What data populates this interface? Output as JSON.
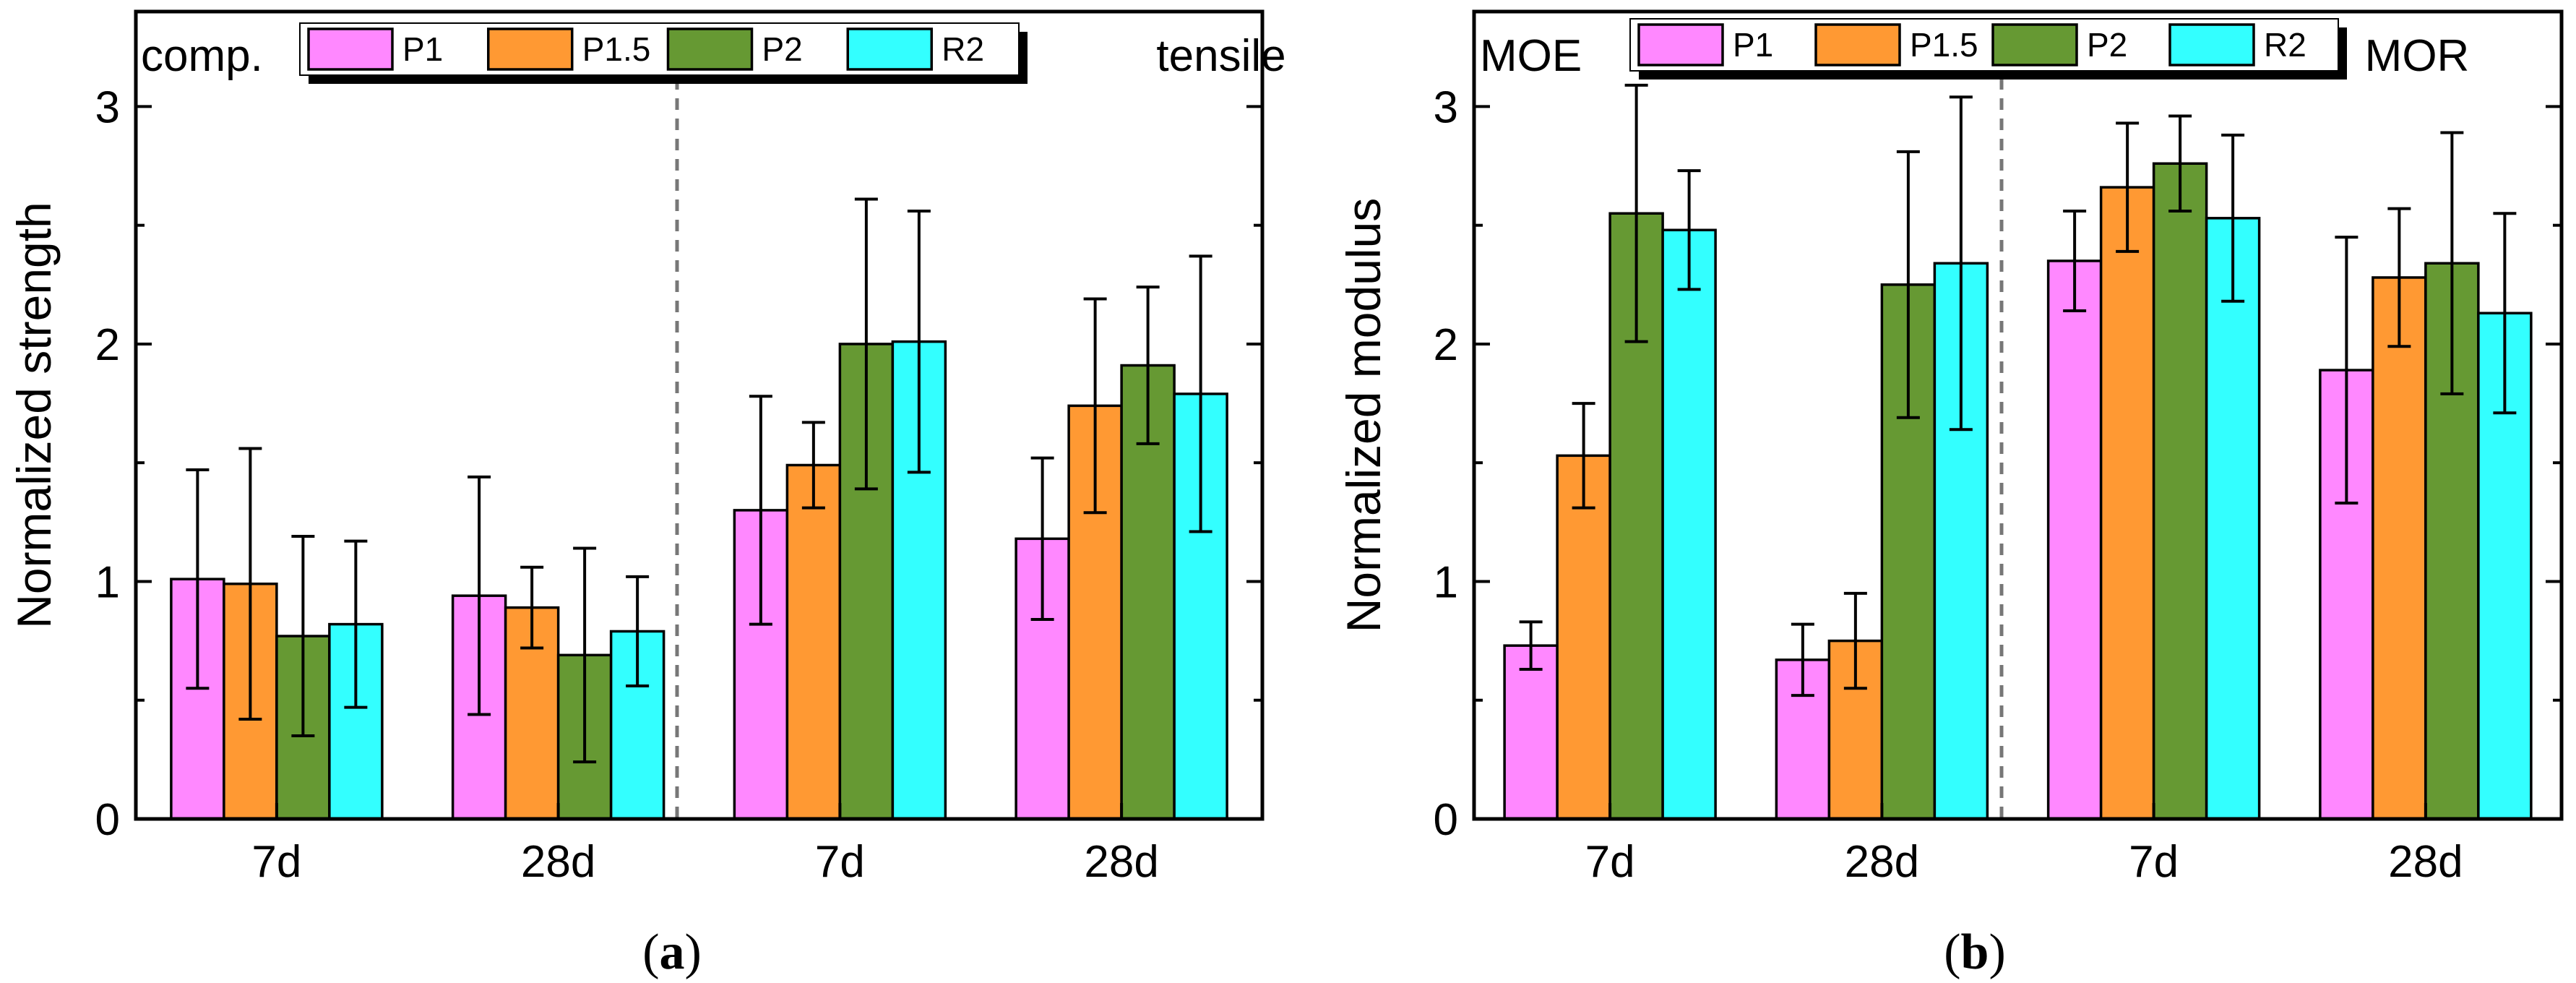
{
  "chart_data": [
    {
      "type": "bar",
      "panel": "(a)",
      "panel_letter": "a",
      "ylabel": "Normalized strength",
      "ylim": [
        0,
        3.4
      ],
      "yticks": [
        0,
        1,
        2,
        3
      ],
      "regions": [
        "comp.",
        "tensile"
      ],
      "categories": [
        "7d",
        "28d",
        "7d",
        "28d"
      ],
      "series": [
        {
          "name": "P1",
          "color": "#ff88ff",
          "values": [
            1.01,
            0.94,
            1.3,
            1.18
          ],
          "errors": [
            0.46,
            0.5,
            0.48,
            0.34
          ]
        },
        {
          "name": "P1.5",
          "color": "#ff9933",
          "values": [
            0.99,
            0.89,
            1.49,
            1.74
          ],
          "errors": [
            0.57,
            0.17,
            0.18,
            0.45
          ]
        },
        {
          "name": "P2",
          "color": "#669933",
          "values": [
            0.77,
            0.69,
            2.0,
            1.91
          ],
          "errors": [
            0.42,
            0.45,
            0.61,
            0.33
          ]
        },
        {
          "name": "R2",
          "color": "#33ffff",
          "values": [
            0.82,
            0.79,
            2.01,
            1.79
          ],
          "errors": [
            0.35,
            0.23,
            0.55,
            0.58
          ]
        }
      ]
    },
    {
      "type": "bar",
      "panel": "(b)",
      "panel_letter": "b",
      "ylabel": "Normalized modulus",
      "ylim": [
        0,
        3.4
      ],
      "yticks": [
        0,
        1,
        2,
        3
      ],
      "regions": [
        "MOE",
        "MOR"
      ],
      "categories": [
        "7d",
        "28d",
        "7d",
        "28d"
      ],
      "series": [
        {
          "name": "P1",
          "color": "#ff88ff",
          "values": [
            0.73,
            0.67,
            2.35,
            1.89
          ],
          "errors": [
            0.1,
            0.15,
            0.21,
            0.56
          ]
        },
        {
          "name": "P1.5",
          "color": "#ff9933",
          "values": [
            1.53,
            0.75,
            2.66,
            2.28
          ],
          "errors": [
            0.22,
            0.2,
            0.27,
            0.29
          ]
        },
        {
          "name": "P2",
          "color": "#669933",
          "values": [
            2.55,
            2.25,
            2.76,
            2.34
          ],
          "errors": [
            0.54,
            0.56,
            0.2,
            0.55
          ]
        },
        {
          "name": "R2",
          "color": "#33ffff",
          "values": [
            2.48,
            2.34,
            2.53,
            2.13
          ],
          "errors": [
            0.25,
            0.7,
            0.35,
            0.42
          ]
        }
      ]
    }
  ]
}
